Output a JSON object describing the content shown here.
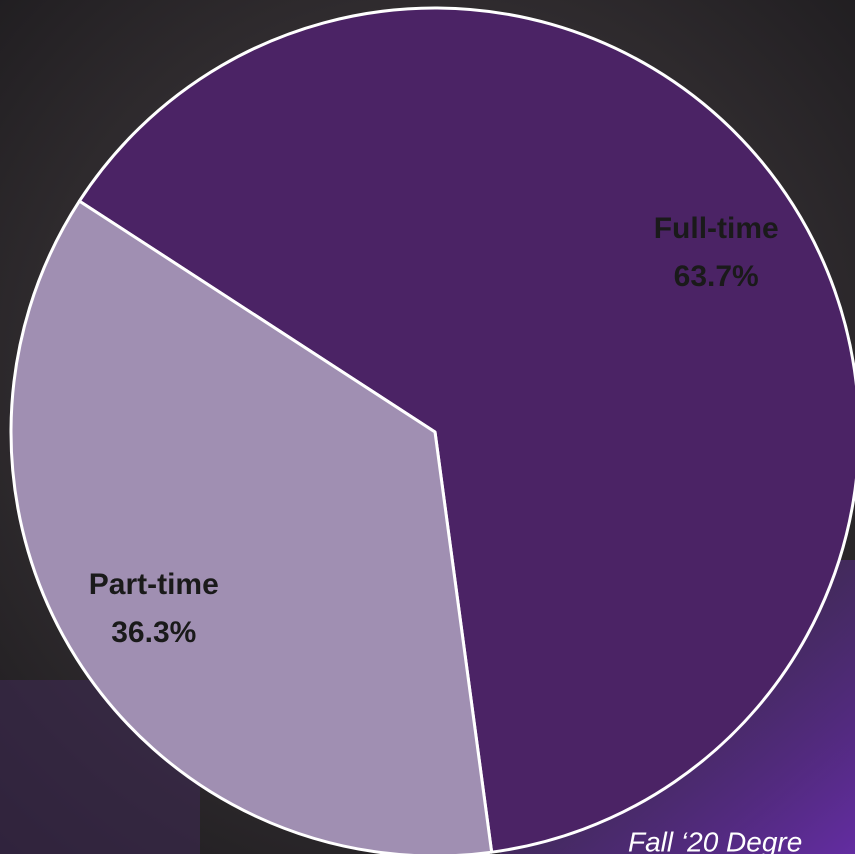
{
  "chart_data": {
    "type": "pie",
    "categories": [
      "Full-time",
      "Part-time"
    ],
    "values": [
      63.7,
      36.3
    ],
    "value_labels": [
      "63.7%",
      "36.3%"
    ],
    "colors": [
      "#4b2365",
      "#a08fb2"
    ],
    "caption": "Fall ‘20 Degre"
  }
}
